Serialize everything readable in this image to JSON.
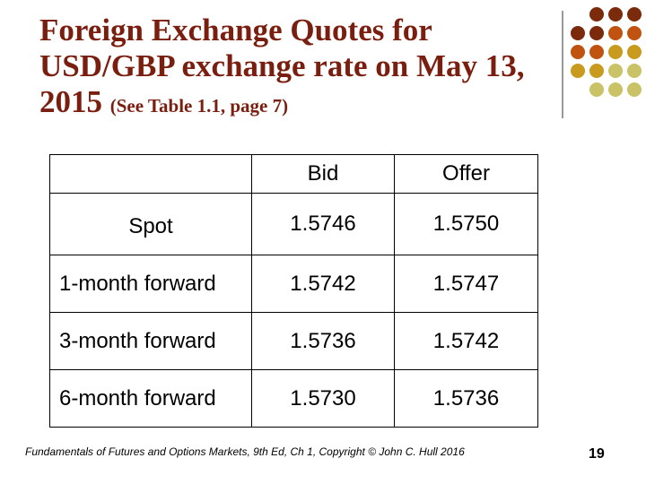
{
  "title": {
    "main": "Foreign Exchange Quotes for USD/GBP exchange rate on May 13, 2015",
    "note": "(See Table 1.1, page 7)"
  },
  "table": {
    "header": [
      "Bid",
      "Offer"
    ],
    "rows": [
      [
        "Spot",
        "1.5746",
        "1.5750"
      ],
      [
        "1-month forward",
        "1.5742",
        "1.5747"
      ],
      [
        "3-month forward",
        "1.5736",
        "1.5742"
      ],
      [
        "6-month forward",
        "1.5730",
        "1.5736"
      ]
    ]
  },
  "footer": {
    "text": "Fundamentals of Futures and Options Markets, 9th Ed, Ch 1, Copyright © John C. Hull 2016",
    "page": "19"
  }
}
